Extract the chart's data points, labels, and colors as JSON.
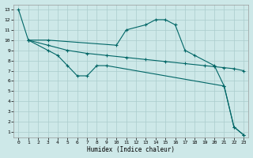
{
  "xlabel": "Humidex (Indice chaleur)",
  "bg_color": "#cde8e8",
  "grid_color": "#aacccc",
  "line_color": "#006666",
  "xlim": [
    -0.5,
    23.5
  ],
  "ylim": [
    0.5,
    13.5
  ],
  "xticks": [
    0,
    1,
    2,
    3,
    4,
    5,
    6,
    7,
    8,
    9,
    10,
    11,
    12,
    13,
    14,
    15,
    16,
    17,
    18,
    19,
    20,
    21,
    22,
    23
  ],
  "yticks": [
    1,
    2,
    3,
    4,
    5,
    6,
    7,
    8,
    9,
    10,
    11,
    12,
    13
  ],
  "line1_x": [
    0,
    1,
    3,
    10,
    11,
    13,
    14,
    15,
    16,
    17,
    18,
    20,
    21,
    22,
    23
  ],
  "line1_y": [
    13,
    10,
    10,
    9.5,
    11,
    11.5,
    12,
    12,
    11.5,
    9.0,
    8.5,
    7.5,
    5.5,
    1.5,
    0.7
  ],
  "line2_x": [
    1,
    3,
    5,
    7,
    9,
    11,
    13,
    15,
    17,
    19,
    20,
    21,
    22,
    23
  ],
  "line2_y": [
    10,
    9.5,
    9.0,
    8.7,
    8.5,
    8.3,
    8.1,
    7.9,
    7.7,
    7.5,
    7.4,
    7.3,
    7.2,
    7.0
  ],
  "line3_x": [
    1,
    3,
    4,
    5,
    6,
    7,
    8,
    9,
    21,
    22,
    23
  ],
  "line3_y": [
    10,
    9.0,
    8.5,
    7.5,
    6.5,
    6.5,
    7.5,
    7.5,
    5.5,
    1.5,
    0.7
  ],
  "figsize": [
    3.2,
    2.0
  ],
  "dpi": 100
}
